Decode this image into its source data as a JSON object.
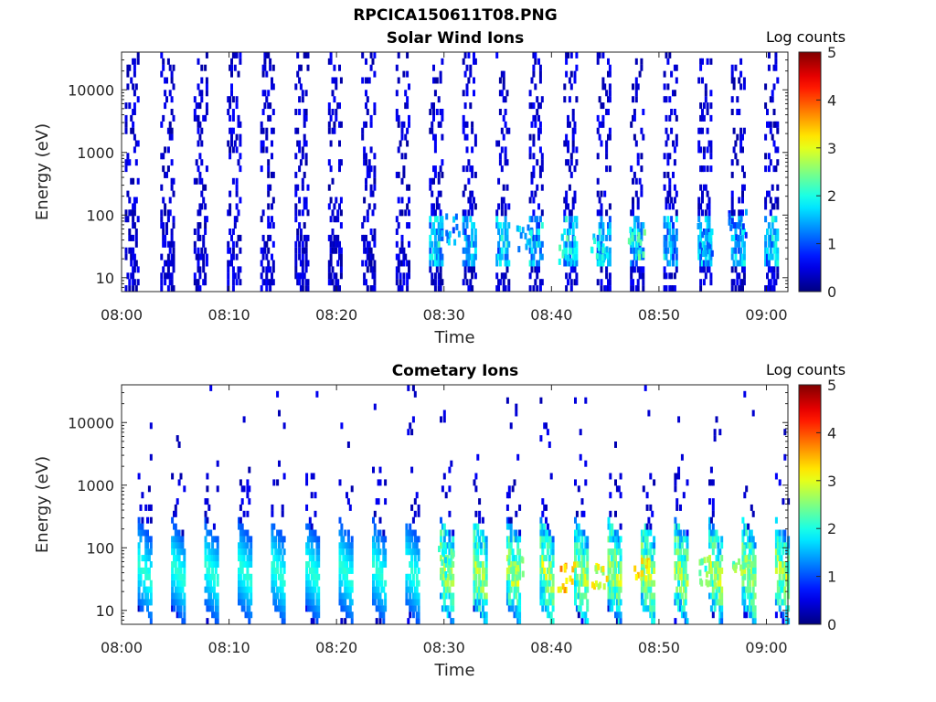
{
  "figure": {
    "title": "RPCICA150611T08.PNG",
    "colormap": "jet"
  },
  "panels": [
    {
      "title": "Solar Wind Ions",
      "xlabel": "Time",
      "ylabel": "Energy (eV)",
      "colorbar_label": "Log counts"
    },
    {
      "title": "Cometary Ions",
      "xlabel": "Time",
      "ylabel": "Energy (eV)",
      "colorbar_label": "Log counts"
    }
  ],
  "chart_data": [
    {
      "type": "heatmap",
      "title": "Solar Wind Ions",
      "xlabel": "Time",
      "ylabel": "Energy (eV)",
      "x_ticks": [
        "08:00",
        "08:10",
        "08:20",
        "08:30",
        "08:40",
        "08:50",
        "09:00"
      ],
      "xlim_minutes": [
        0,
        62
      ],
      "y_scale": "log",
      "y_ticks": [
        10,
        100,
        1000,
        10000
      ],
      "y_tick_labels": [
        "10",
        "100",
        "1000",
        "10000"
      ],
      "ylim": [
        6,
        40000
      ],
      "colorbar": {
        "label": "Log counts",
        "range": [
          0,
          5
        ],
        "ticks": [
          "0",
          "1",
          "2",
          "3",
          "4",
          "5"
        ]
      },
      "scan_times_minutes": [
        0.3,
        3.6,
        6.7,
        9.8,
        12.9,
        16.1,
        19.2,
        22.3,
        25.5,
        28.6,
        31.7,
        34.8,
        37.9,
        41.1,
        44.2,
        47.3,
        50.4,
        53.6,
        56.7,
        59.8
      ],
      "peak_features": [
        {
          "time_min": 30.5,
          "energy_eV": 60,
          "log_counts": 1.8
        },
        {
          "time_min": 37.5,
          "energy_eV": 45,
          "log_counts": 2.0
        },
        {
          "time_min": 41.3,
          "energy_eV": 30,
          "log_counts": 2.5
        },
        {
          "time_min": 44.3,
          "energy_eV": 30,
          "log_counts": 2.3
        },
        {
          "time_min": 47.8,
          "energy_eV": 35,
          "log_counts": 2.5
        },
        {
          "time_min": 54.2,
          "energy_eV": 40,
          "log_counts": 1.8
        },
        {
          "time_min": 57.2,
          "energy_eV": 70,
          "log_counts": 1.6
        }
      ]
    },
    {
      "type": "heatmap",
      "title": "Cometary Ions",
      "xlabel": "Time",
      "ylabel": "Energy (eV)",
      "x_ticks": [
        "08:00",
        "08:10",
        "08:20",
        "08:30",
        "08:40",
        "08:50",
        "09:00"
      ],
      "xlim_minutes": [
        0,
        62
      ],
      "y_scale": "log",
      "y_ticks": [
        10,
        100,
        1000,
        10000
      ],
      "y_tick_labels": [
        "10",
        "100",
        "1000",
        "10000"
      ],
      "ylim": [
        6,
        40000
      ],
      "colorbar": {
        "label": "Log counts",
        "range": [
          0,
          5
        ],
        "ticks": [
          "0",
          "1",
          "2",
          "3",
          "4",
          "5"
        ]
      },
      "scan_times_minutes": [
        1.5,
        4.6,
        7.7,
        10.8,
        13.9,
        17.1,
        20.2,
        23.3,
        26.4,
        29.6,
        32.7,
        35.8,
        38.9,
        42.1,
        45.2,
        48.3,
        51.4,
        54.6,
        57.7,
        60.8
      ],
      "peak_features": [
        {
          "time_min": 30.0,
          "energy_eV": 60,
          "log_counts": 2.5
        },
        {
          "time_min": 36.5,
          "energy_eV": 40,
          "log_counts": 3.0
        },
        {
          "time_min": 41.3,
          "energy_eV": 35,
          "log_counts": 3.8
        },
        {
          "time_min": 44.3,
          "energy_eV": 35,
          "log_counts": 3.4
        },
        {
          "time_min": 48.2,
          "energy_eV": 40,
          "log_counts": 3.6
        },
        {
          "time_min": 54.5,
          "energy_eV": 40,
          "log_counts": 2.8
        },
        {
          "time_min": 57.5,
          "energy_eV": 60,
          "log_counts": 3.0
        }
      ]
    }
  ]
}
